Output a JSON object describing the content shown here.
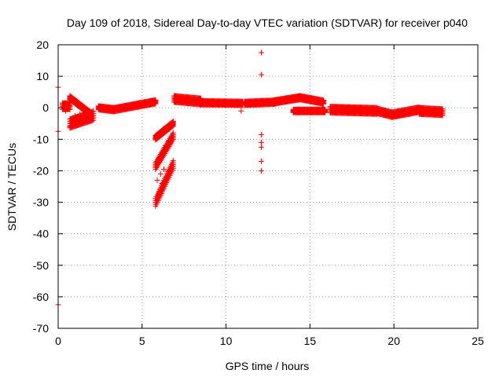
{
  "chart_data": {
    "type": "scatter",
    "title": "Day 109 of 2018, Sidereal Day-to-day VTEC variation (SDTVAR) for receiver p040",
    "xlabel": "GPS time / hours",
    "ylabel": "SDTVAR / TECUs",
    "xlim": [
      0,
      25
    ],
    "ylim": [
      -70,
      20
    ],
    "xticks": [
      0,
      5,
      10,
      15,
      20,
      25
    ],
    "yticks": [
      20,
      10,
      0,
      -10,
      -20,
      -30,
      -40,
      -50,
      -60,
      -70
    ],
    "grid": true,
    "marker": "+",
    "color": "#ff0000",
    "series": [
      {
        "name": "SDTVAR",
        "points": [
          [
            0.0,
            6.5
          ],
          [
            0.0,
            -7.5
          ],
          [
            0.0,
            -62.5
          ],
          [
            0.3,
            1.0
          ],
          [
            0.35,
            0.5
          ],
          [
            0.4,
            -0.5
          ],
          [
            0.45,
            -1.0
          ],
          [
            0.5,
            0.2
          ],
          [
            0.55,
            1.5
          ],
          [
            0.6,
            -0.3
          ],
          [
            0.65,
            0.8
          ],
          [
            0.7,
            3.5
          ],
          [
            0.8,
            3.0
          ],
          [
            0.9,
            2.5
          ],
          [
            1.0,
            2.0
          ],
          [
            1.1,
            1.5
          ],
          [
            1.2,
            1.0
          ],
          [
            1.3,
            0.5
          ],
          [
            1.4,
            0.0
          ],
          [
            1.5,
            -0.5
          ],
          [
            1.6,
            -1.0
          ],
          [
            1.7,
            -1.5
          ],
          [
            1.8,
            -2.0
          ],
          [
            0.7,
            -6.0
          ],
          [
            0.8,
            -5.0
          ],
          [
            0.9,
            -4.5
          ],
          [
            1.0,
            -4.0
          ],
          [
            1.2,
            -3.5
          ],
          [
            1.4,
            -3.0
          ],
          [
            1.6,
            -2.8
          ],
          [
            1.8,
            -2.5
          ],
          [
            2.0,
            -2.5
          ],
          [
            0.75,
            -3.5
          ],
          [
            1.0,
            -2.5
          ],
          [
            1.3,
            -2.0
          ],
          [
            1.6,
            -1.5
          ],
          [
            1.9,
            -1.8
          ],
          [
            2.5,
            0.0
          ],
          [
            2.8,
            -0.5
          ],
          [
            3.1,
            -0.8
          ],
          [
            3.4,
            -0.5
          ],
          [
            3.7,
            -0.2
          ],
          [
            4.0,
            0.3
          ],
          [
            4.3,
            0.7
          ],
          [
            4.6,
            1.2
          ],
          [
            4.9,
            1.6
          ],
          [
            5.2,
            1.8
          ],
          [
            5.5,
            2.0
          ],
          [
            5.7,
            1.8
          ],
          [
            5.8,
            -30.0
          ],
          [
            6.0,
            -27.0
          ],
          [
            6.2,
            -24.0
          ],
          [
            6.4,
            -22.0
          ],
          [
            6.6,
            -20.0
          ],
          [
            6.8,
            -18.0
          ],
          [
            5.9,
            -23.0
          ],
          [
            6.1,
            -21.0
          ],
          [
            6.3,
            -19.5
          ],
          [
            5.8,
            -18.5
          ],
          [
            6.0,
            -16.0
          ],
          [
            6.2,
            -14.0
          ],
          [
            6.4,
            -12.0
          ],
          [
            6.6,
            -10.5
          ],
          [
            6.8,
            -9.0
          ],
          [
            5.8,
            -9.5
          ],
          [
            6.0,
            -8.5
          ],
          [
            6.2,
            -7.5
          ],
          [
            6.4,
            -6.5
          ],
          [
            6.6,
            -5.5
          ],
          [
            6.8,
            -5.0
          ],
          [
            7.0,
            3.0
          ],
          [
            7.2,
            2.8
          ],
          [
            7.5,
            3.0
          ],
          [
            7.8,
            2.5
          ],
          [
            8.0,
            2.0
          ],
          [
            8.3,
            2.5
          ],
          [
            8.6,
            1.5
          ],
          [
            9.0,
            1.6
          ],
          [
            9.5,
            1.5
          ],
          [
            10.0,
            1.5
          ],
          [
            10.5,
            1.5
          ],
          [
            10.8,
            1.2
          ],
          [
            10.9,
            -1.0
          ],
          [
            11.2,
            2.0
          ],
          [
            11.5,
            1.5
          ],
          [
            11.8,
            1.0
          ],
          [
            12.0,
            1.0
          ],
          [
            12.1,
            17.5
          ],
          [
            12.1,
            10.5
          ],
          [
            12.1,
            -8.5
          ],
          [
            12.1,
            -11.0
          ],
          [
            12.1,
            -12.5
          ],
          [
            12.1,
            -17.0
          ],
          [
            12.1,
            -20.0
          ],
          [
            12.3,
            1.5
          ],
          [
            12.6,
            2.0
          ],
          [
            12.9,
            2.0
          ],
          [
            13.2,
            2.5
          ],
          [
            13.5,
            2.8
          ],
          [
            13.8,
            3.0
          ],
          [
            14.1,
            3.0
          ],
          [
            14.4,
            3.3
          ],
          [
            14.7,
            3.0
          ],
          [
            15.0,
            2.5
          ],
          [
            15.3,
            2.0
          ],
          [
            15.6,
            1.5
          ],
          [
            14.0,
            -1.0
          ],
          [
            14.5,
            -1.0
          ],
          [
            15.0,
            -1.0
          ],
          [
            15.5,
            -1.0
          ],
          [
            15.8,
            -1.0
          ],
          [
            16.3,
            -0.5
          ],
          [
            16.6,
            -0.5
          ],
          [
            17.0,
            -1.0
          ],
          [
            17.4,
            -0.5
          ],
          [
            17.8,
            -1.0
          ],
          [
            18.2,
            -1.0
          ],
          [
            18.6,
            -1.0
          ],
          [
            19.0,
            -1.5
          ],
          [
            19.4,
            -2.0
          ],
          [
            19.8,
            -2.5
          ],
          [
            20.2,
            -1.5
          ],
          [
            20.6,
            -1.2
          ],
          [
            21.0,
            -1.0
          ],
          [
            21.4,
            -0.5
          ],
          [
            21.5,
            -0.2
          ],
          [
            21.6,
            0.0
          ],
          [
            21.7,
            -1.0
          ],
          [
            21.8,
            -2.0
          ],
          [
            22.0,
            -1.0
          ],
          [
            22.2,
            -2.0
          ],
          [
            22.5,
            -1.5
          ],
          [
            22.8,
            -1.0
          ]
        ]
      }
    ],
    "ribbons": [
      {
        "t0": 0.25,
        "t1": 0.7,
        "v0": 0.5,
        "v1": 0.5,
        "hw": 1.0
      },
      {
        "t0": 0.7,
        "t1": 1.9,
        "v0": 3.2,
        "v1": -1.8,
        "hw": 0.6
      },
      {
        "t0": 0.7,
        "t1": 2.1,
        "v0": -5.0,
        "v1": -2.5,
        "hw": 1.4
      },
      {
        "t0": 2.4,
        "t1": 3.3,
        "v0": 0.0,
        "v1": -0.6,
        "hw": 0.6
      },
      {
        "t0": 3.3,
        "t1": 5.8,
        "v0": -0.6,
        "v1": 1.9,
        "hw": 0.6
      },
      {
        "t0": 5.8,
        "t1": 6.85,
        "v0": -30.0,
        "v1": -18.0,
        "hw": 1.2
      },
      {
        "t0": 5.8,
        "t1": 6.85,
        "v0": -18.5,
        "v1": -9.0,
        "hw": 1.0
      },
      {
        "t0": 5.8,
        "t1": 6.85,
        "v0": -9.5,
        "v1": -5.0,
        "hw": 0.7
      },
      {
        "t0": 6.9,
        "t1": 8.5,
        "v0": 2.8,
        "v1": 2.0,
        "hw": 1.0
      },
      {
        "t0": 8.5,
        "t1": 11.0,
        "v0": 1.6,
        "v1": 1.4,
        "hw": 0.6
      },
      {
        "t0": 11.1,
        "t1": 12.9,
        "v0": 1.4,
        "v1": 1.8,
        "hw": 0.6
      },
      {
        "t0": 12.9,
        "t1": 14.4,
        "v0": 1.9,
        "v1": 3.2,
        "hw": 0.6
      },
      {
        "t0": 14.4,
        "t1": 15.8,
        "v0": 3.2,
        "v1": 1.8,
        "hw": 0.6
      },
      {
        "t0": 14.0,
        "t1": 15.9,
        "v0": -1.0,
        "v1": -1.0,
        "hw": 0.5
      },
      {
        "t0": 16.2,
        "t1": 19.0,
        "v0": -0.6,
        "v1": -1.0,
        "hw": 1.0
      },
      {
        "t0": 19.0,
        "t1": 19.9,
        "v0": -1.0,
        "v1": -2.2,
        "hw": 0.8
      },
      {
        "t0": 19.9,
        "t1": 21.5,
        "v0": -2.2,
        "v1": -0.6,
        "hw": 0.8
      },
      {
        "t0": 21.5,
        "t1": 22.9,
        "v0": -1.0,
        "v1": -1.4,
        "hw": 1.0
      }
    ]
  }
}
